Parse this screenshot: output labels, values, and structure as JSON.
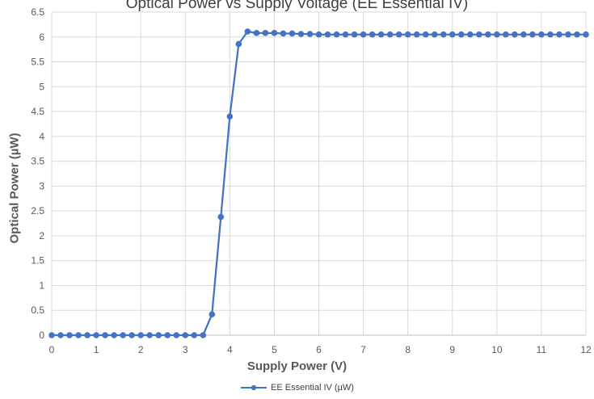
{
  "chart_data": {
    "type": "line",
    "title": "Optical Power vs Supply Voltage (EE Essential IV)",
    "xlabel": "Supply Power (V)",
    "ylabel": "Optical Power (µW)",
    "xlim": [
      0,
      12
    ],
    "ylim": [
      0,
      6.5
    ],
    "x_ticks": [
      "0",
      "1",
      "2",
      "3",
      "4",
      "5",
      "6",
      "7",
      "8",
      "9",
      "10",
      "11",
      "12"
    ],
    "y_ticks": [
      "0",
      "0.5",
      "1",
      "1.5",
      "2",
      "2.5",
      "3",
      "3.5",
      "4",
      "4.5",
      "5",
      "5.5",
      "6",
      "6.5"
    ],
    "grid": true,
    "legend_position": "bottom",
    "colors": {
      "series": "#4472C4",
      "grid": "#d9d9d9",
      "text": "#595959"
    },
    "series": [
      {
        "name": "EE Essential IV (µW)",
        "x": [
          0,
          0.2,
          0.4,
          0.6,
          0.8,
          1.0,
          1.2,
          1.4,
          1.6,
          1.8,
          2.0,
          2.2,
          2.4,
          2.6,
          2.8,
          3.0,
          3.2,
          3.4,
          3.6,
          3.8,
          4.0,
          4.2,
          4.4,
          4.6,
          4.8,
          5.0,
          5.2,
          5.4,
          5.6,
          5.8,
          6.0,
          6.2,
          6.4,
          6.6,
          6.8,
          7.0,
          7.2,
          7.4,
          7.6,
          7.8,
          8.0,
          8.2,
          8.4,
          8.6,
          8.8,
          9.0,
          9.2,
          9.4,
          9.6,
          9.8,
          10.0,
          10.2,
          10.4,
          10.6,
          10.8,
          11.0,
          11.2,
          11.4,
          11.6,
          11.8,
          12.0
        ],
        "y": [
          0,
          0,
          0,
          0,
          0,
          0,
          0,
          0,
          0,
          0,
          0,
          0,
          0,
          0,
          0,
          0,
          0,
          0,
          0.42,
          2.38,
          4.4,
          5.86,
          6.11,
          6.08,
          6.08,
          6.08,
          6.07,
          6.07,
          6.06,
          6.06,
          6.05,
          6.05,
          6.05,
          6.05,
          6.05,
          6.05,
          6.05,
          6.05,
          6.05,
          6.05,
          6.05,
          6.05,
          6.05,
          6.05,
          6.05,
          6.05,
          6.05,
          6.05,
          6.05,
          6.05,
          6.05,
          6.05,
          6.05,
          6.05,
          6.05,
          6.05,
          6.05,
          6.05,
          6.05,
          6.05,
          6.05
        ]
      }
    ]
  }
}
